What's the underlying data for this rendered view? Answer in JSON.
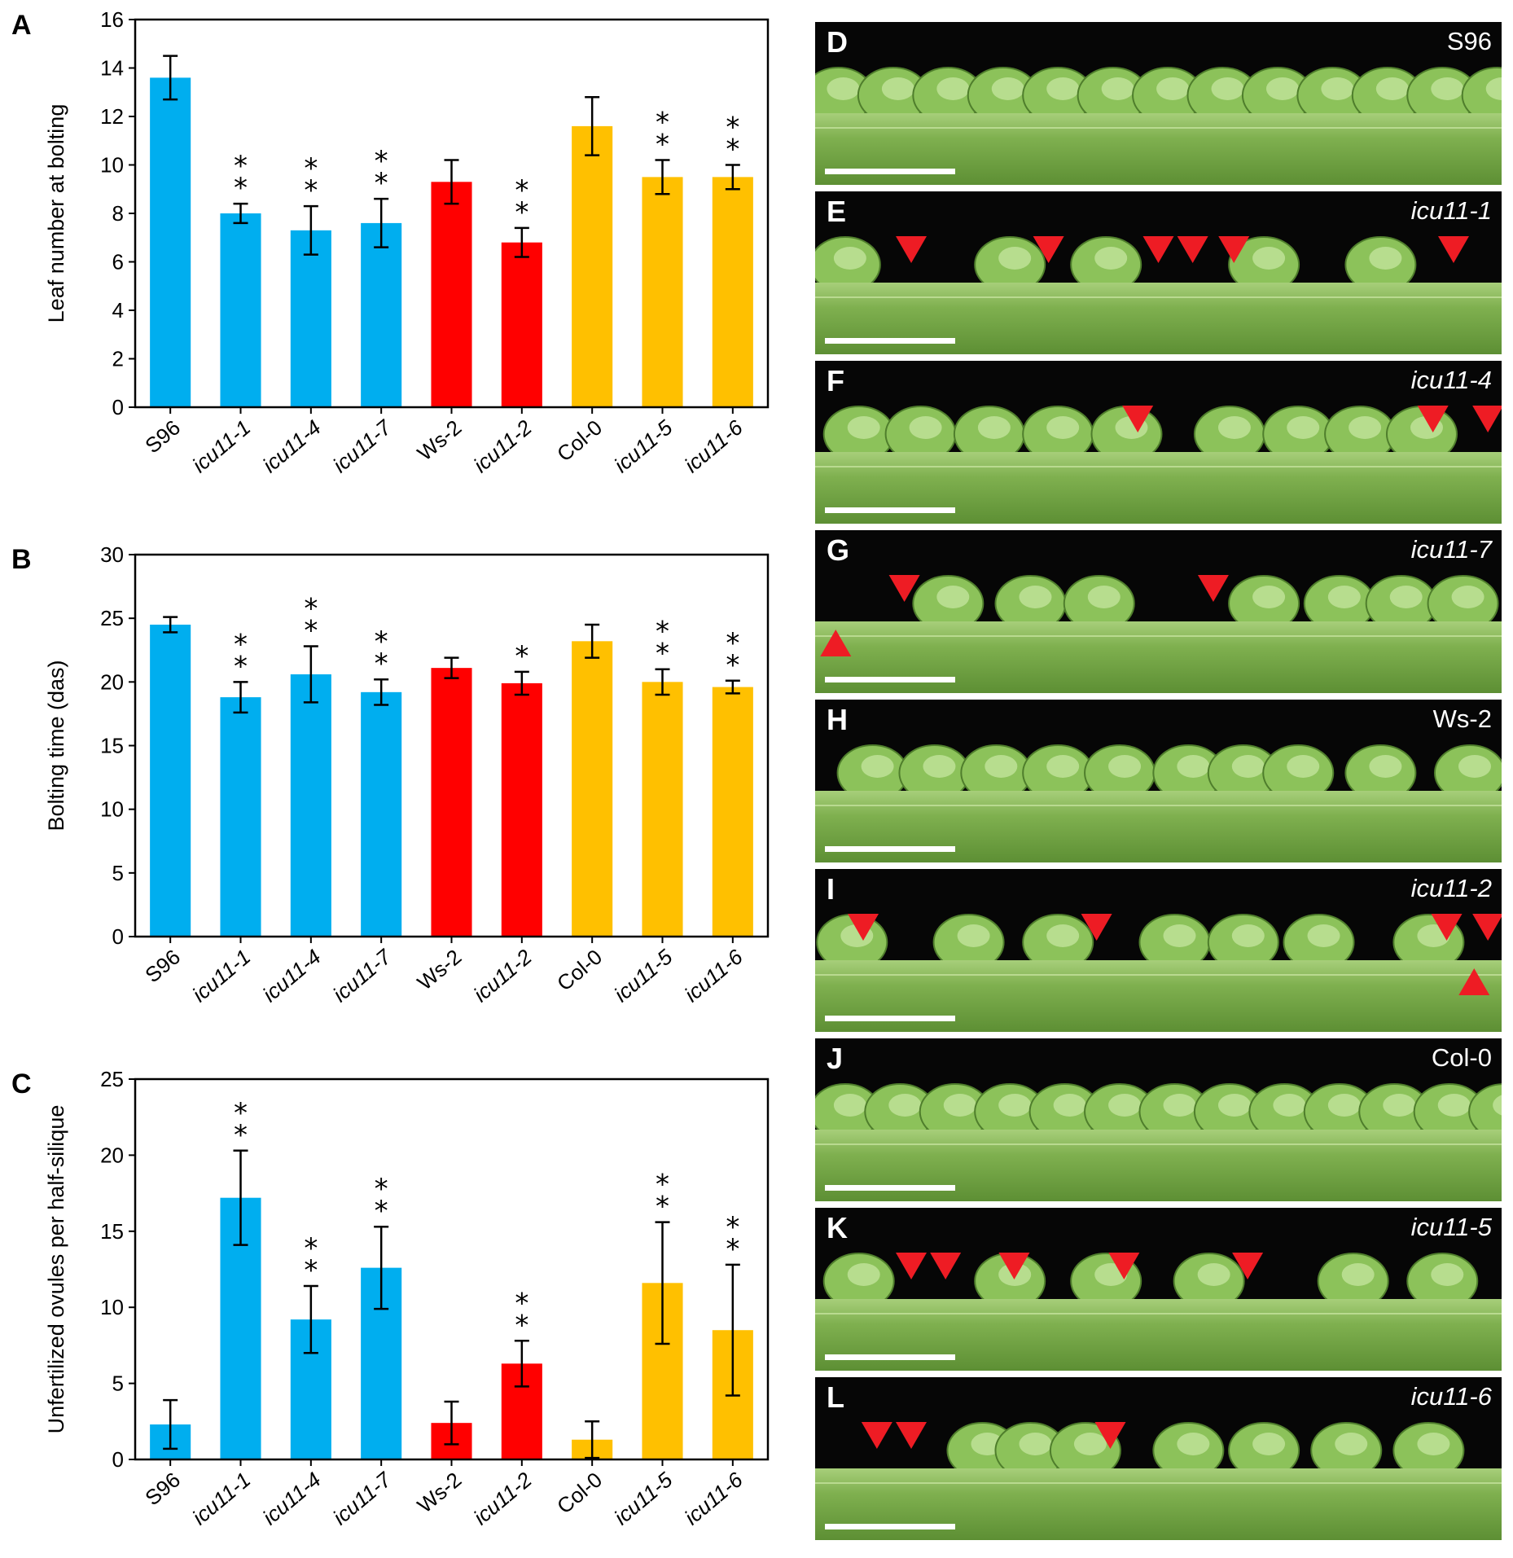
{
  "chart_data": [
    {
      "panel": "A",
      "type": "bar",
      "ylabel": "Leaf number at bolting",
      "ylim": [
        0,
        16
      ],
      "yticks": [
        0,
        2,
        4,
        6,
        8,
        10,
        12,
        14,
        16
      ],
      "categories": [
        "S96",
        "icu11-1",
        "icu11-4",
        "icu11-7",
        "Ws-2",
        "icu11-2",
        "Col-0",
        "icu11-5",
        "icu11-6"
      ],
      "values": [
        13.6,
        8.0,
        7.3,
        7.6,
        9.3,
        6.8,
        11.6,
        9.5,
        9.5
      ],
      "errors": [
        0.9,
        0.4,
        1.0,
        1.0,
        0.9,
        0.6,
        1.2,
        0.7,
        0.5
      ],
      "significance": [
        "",
        "**",
        "**",
        "**",
        "",
        "**",
        "",
        "**",
        "**"
      ],
      "colors": [
        "#00AEEF",
        "#00AEEF",
        "#00AEEF",
        "#00AEEF",
        "#FF0000",
        "#FF0000",
        "#FFC000",
        "#FFC000",
        "#FFC000"
      ]
    },
    {
      "panel": "B",
      "type": "bar",
      "ylabel": "Bolting time (das)",
      "ylim": [
        0,
        30
      ],
      "yticks": [
        0,
        5,
        10,
        15,
        20,
        25,
        30
      ],
      "categories": [
        "S96",
        "icu11-1",
        "icu11-4",
        "icu11-7",
        "Ws-2",
        "icu11-2",
        "Col-0",
        "icu11-5",
        "icu11-6"
      ],
      "values": [
        24.5,
        18.8,
        20.6,
        19.2,
        21.1,
        19.9,
        23.2,
        20.0,
        19.6
      ],
      "errors": [
        0.6,
        1.2,
        2.2,
        1.0,
        0.8,
        0.9,
        1.3,
        1.0,
        0.5
      ],
      "significance": [
        "",
        "**",
        "**",
        "**",
        "",
        "*",
        "",
        "**",
        "**"
      ],
      "colors": [
        "#00AEEF",
        "#00AEEF",
        "#00AEEF",
        "#00AEEF",
        "#FF0000",
        "#FF0000",
        "#FFC000",
        "#FFC000",
        "#FFC000"
      ]
    },
    {
      "panel": "C",
      "type": "bar",
      "ylabel": "Unfertilized ovules per half-silique",
      "ylim": [
        0,
        25
      ],
      "yticks": [
        0,
        5,
        10,
        15,
        20,
        25
      ],
      "categories": [
        "S96",
        "icu11-1",
        "icu11-4",
        "icu11-7",
        "Ws-2",
        "icu11-2",
        "Col-0",
        "icu11-5",
        "icu11-6"
      ],
      "values": [
        2.3,
        17.2,
        9.2,
        12.6,
        2.4,
        6.3,
        1.3,
        11.6,
        8.5
      ],
      "errors": [
        1.6,
        3.1,
        2.2,
        2.7,
        1.4,
        1.5,
        1.2,
        4.0,
        4.3
      ],
      "significance": [
        "",
        "**",
        "**",
        "**",
        "",
        "**",
        "",
        "**",
        "**"
      ],
      "colors": [
        "#00AEEF",
        "#00AEEF",
        "#00AEEF",
        "#00AEEF",
        "#FF0000",
        "#FF0000",
        "#FFC000",
        "#FFC000",
        "#FFC000"
      ]
    }
  ],
  "photo_panels": [
    {
      "label": "D",
      "genotype": "S96",
      "italic": false,
      "arrows_down": [],
      "arrows_up": []
    },
    {
      "label": "E",
      "genotype": "icu11-1",
      "italic": true,
      "arrows_down": [
        0.14,
        0.34,
        0.5,
        0.55,
        0.61,
        0.93
      ],
      "arrows_up": []
    },
    {
      "label": "F",
      "genotype": "icu11-4",
      "italic": true,
      "arrows_down": [
        0.47,
        0.9,
        0.98
      ],
      "arrows_up": []
    },
    {
      "label": "G",
      "genotype": "icu11-7",
      "italic": true,
      "arrows_down": [
        0.13,
        0.58
      ],
      "arrows_up": [
        0.03
      ]
    },
    {
      "label": "H",
      "genotype": "Ws-2",
      "italic": false,
      "arrows_down": [],
      "arrows_up": []
    },
    {
      "label": "I",
      "genotype": "icu11-2",
      "italic": true,
      "arrows_down": [
        0.07,
        0.41,
        0.92,
        0.98
      ],
      "arrows_up": [
        0.96
      ]
    },
    {
      "label": "J",
      "genotype": "Col-0",
      "italic": false,
      "arrows_down": [],
      "arrows_up": []
    },
    {
      "label": "K",
      "genotype": "icu11-5",
      "italic": true,
      "arrows_down": [
        0.14,
        0.19,
        0.29,
        0.45,
        0.63
      ],
      "arrows_up": []
    },
    {
      "label": "L",
      "genotype": "icu11-6",
      "italic": true,
      "arrows_down": [
        0.09,
        0.14,
        0.43
      ],
      "arrows_up": []
    }
  ]
}
